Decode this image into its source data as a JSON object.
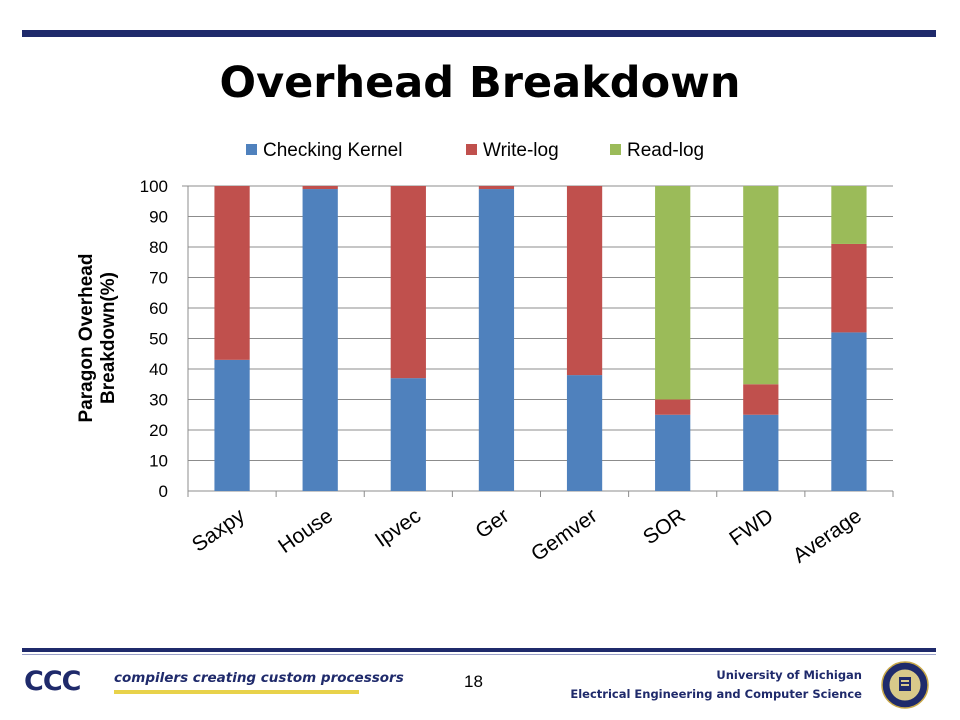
{
  "slide": {
    "title": "Overhead Breakdown",
    "page_number": "18",
    "footer_line1": "University of Michigan",
    "footer_line2": "Electrical Engineering and Computer Science",
    "logo_text": "CCC",
    "logo_tagline": "compilers creating custom processors"
  },
  "colors": {
    "rule": "#1f2a6b",
    "accent_yellow": "#e8d24a"
  },
  "chart_data": {
    "type": "bar",
    "stacked": true,
    "title": "",
    "xlabel": "",
    "ylabel_lines": [
      "Paragon Overhead",
      "Breakdown(%)"
    ],
    "ylim": [
      0,
      100
    ],
    "yticks": [
      0,
      10,
      20,
      30,
      40,
      50,
      60,
      70,
      80,
      90,
      100
    ],
    "grid": true,
    "legend_position": "top",
    "categories": [
      "Saxpy",
      "House",
      "Ipvec",
      "Ger",
      "Gemver",
      "SOR",
      "FWD",
      "Average"
    ],
    "series": [
      {
        "name": "Checking Kernel",
        "color": "#4f81bd",
        "values": [
          43,
          99,
          37,
          99,
          38,
          25,
          25,
          52
        ]
      },
      {
        "name": "Write-log",
        "color": "#c0504d",
        "values": [
          57,
          1,
          63,
          1,
          62,
          5,
          10,
          29
        ]
      },
      {
        "name": "Read-log",
        "color": "#9bbb59",
        "values": [
          0,
          0,
          0,
          0,
          0,
          70,
          65,
          19
        ]
      }
    ]
  }
}
